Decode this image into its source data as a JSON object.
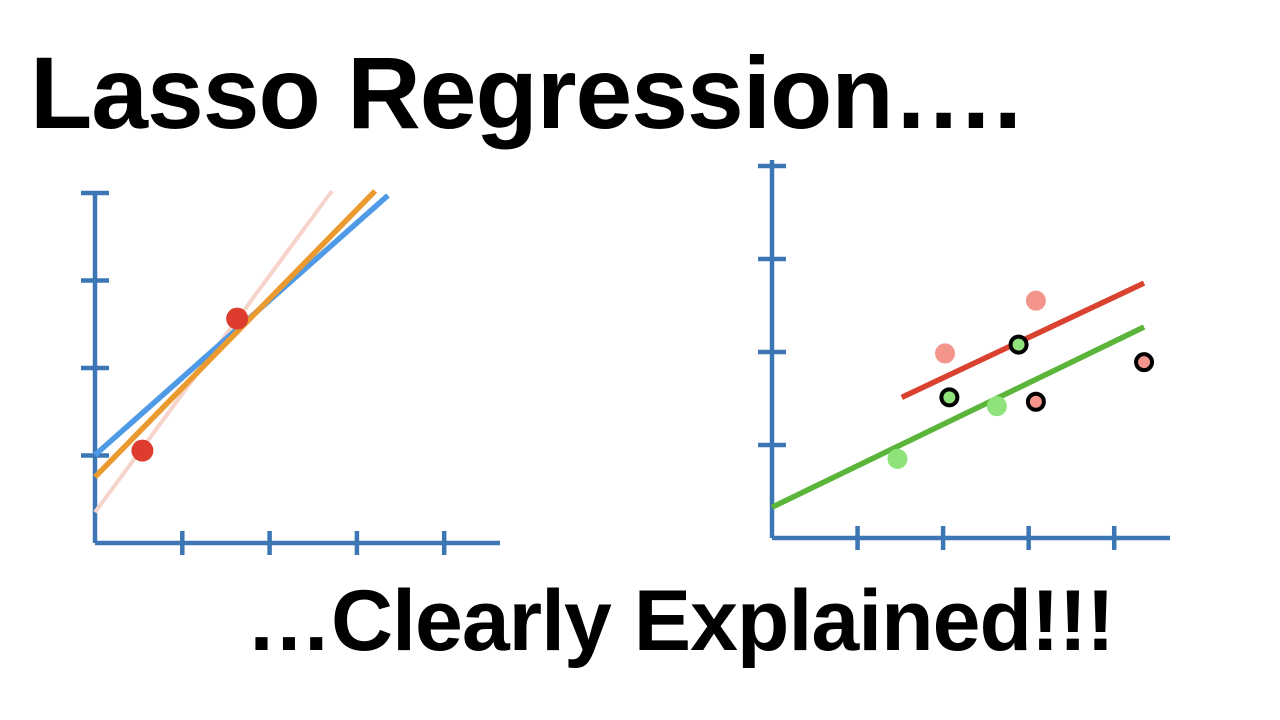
{
  "title": "Lasso Regression….",
  "subtitle": "…Clearly Explained!!!",
  "colors": {
    "axis": "#3d76b4",
    "line_blue": "#4f9ae6",
    "line_orange": "#ea9a2e",
    "line_faint": "#f6d3cb",
    "point_red": "#de3c2e",
    "line_red": "#d8422f",
    "line_green": "#5ab53a",
    "point_salmon": "#f3958a",
    "point_green": "#8fe37a",
    "outline_black": "#000000"
  },
  "chart_data": [
    {
      "type": "line",
      "xlim": [
        0,
        4.7
      ],
      "ylim": [
        0,
        4
      ],
      "points": [
        {
          "x": 0.55,
          "y": 1.05
        },
        {
          "x": 1.65,
          "y": 2.55
        }
      ],
      "lines": [
        {
          "color": "line_faint",
          "from": [
            0.0,
            0.35
          ],
          "to": [
            2.75,
            4.0
          ]
        },
        {
          "color": "line_blue",
          "from": [
            0.0,
            1.0
          ],
          "to": [
            3.4,
            3.95
          ]
        },
        {
          "color": "line_orange",
          "from": [
            0.0,
            0.75
          ],
          "to": [
            3.25,
            4.0
          ]
        }
      ]
    },
    {
      "type": "scatter",
      "xlim": [
        0,
        4.6
      ],
      "ylim": [
        0,
        4.3
      ],
      "points": [
        {
          "x": 1.45,
          "y": 0.9,
          "fill": "point_green",
          "stroke": "point_green"
        },
        {
          "x": 2.0,
          "y": 2.1,
          "fill": "point_salmon",
          "stroke": "point_salmon"
        },
        {
          "x": 2.05,
          "y": 1.6,
          "fill": "point_green",
          "stroke": "outline_black"
        },
        {
          "x": 2.6,
          "y": 1.5,
          "fill": "point_green",
          "stroke": "point_green"
        },
        {
          "x": 2.85,
          "y": 2.2,
          "fill": "point_green",
          "stroke": "outline_black"
        },
        {
          "x": 3.05,
          "y": 1.55,
          "fill": "point_salmon",
          "stroke": "outline_black"
        },
        {
          "x": 3.05,
          "y": 2.7,
          "fill": "point_salmon",
          "stroke": "point_salmon"
        },
        {
          "x": 4.3,
          "y": 2.0,
          "fill": "point_salmon",
          "stroke": "outline_black"
        }
      ],
      "lines": [
        {
          "color": "line_red",
          "from": [
            1.5,
            1.6
          ],
          "to": [
            4.3,
            2.9
          ]
        },
        {
          "color": "line_green",
          "from": [
            0.0,
            0.35
          ],
          "to": [
            4.3,
            2.4
          ]
        }
      ]
    }
  ]
}
